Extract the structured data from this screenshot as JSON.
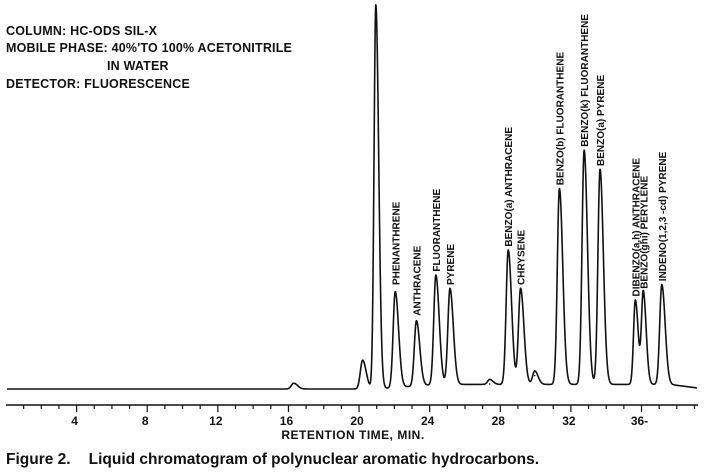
{
  "info": {
    "column": "COLUMN: HC-ODS SIL-X",
    "mobile_phase_1": "MOBILE PHASE: 40%'TO 100% ACETONITRILE",
    "mobile_phase_2": "IN WATER",
    "detector": "DETECTOR: FLUORESCENCE"
  },
  "caption": {
    "number": "Figure 2.",
    "text": "Liquid chromatogram of polynuclear aromatic hydrocarbons."
  },
  "chart_data": {
    "type": "line",
    "title": "",
    "xlabel": "RETENTION TIME, MIN.",
    "ylabel": "",
    "xlim": [
      0,
      39.2
    ],
    "ylim": [
      0,
      100
    ],
    "grid": false,
    "x_ticks": [
      {
        "value": 4,
        "label": "4"
      },
      {
        "value": 8,
        "label": "8"
      },
      {
        "value": 12,
        "label": "12"
      },
      {
        "value": 16,
        "label": "16"
      },
      {
        "value": 20,
        "label": "20"
      },
      {
        "value": 24,
        "label": "24"
      },
      {
        "value": 28,
        "label": "28"
      },
      {
        "value": 32,
        "label": "32"
      },
      {
        "value": 36,
        "label": "36-"
      }
    ],
    "baseline": 0,
    "peaks": [
      {
        "rt": 16.3,
        "height": 1.5,
        "width": 0.16,
        "label": ""
      },
      {
        "rt": 20.2,
        "height": 7.5,
        "width": 0.15,
        "label": ""
      },
      {
        "rt": 20.95,
        "height": 100,
        "width": 0.12,
        "label": ""
      },
      {
        "rt": 22.05,
        "height": 25.0,
        "width": 0.14,
        "label": "PHENANTHRENE"
      },
      {
        "rt": 23.25,
        "height": 17.0,
        "width": 0.14,
        "label": "ANTHRACENE"
      },
      {
        "rt": 24.35,
        "height": 28.5,
        "width": 0.14,
        "label": "FLUORANTHENE"
      },
      {
        "rt": 25.15,
        "height": 25.0,
        "width": 0.14,
        "label": "PYRENE"
      },
      {
        "rt": 27.4,
        "height": 1.3,
        "width": 0.14,
        "label": ""
      },
      {
        "rt": 28.45,
        "height": 35.0,
        "width": 0.14,
        "label": "BENZO(a) ANTHRACENE"
      },
      {
        "rt": 29.15,
        "height": 25.0,
        "width": 0.14,
        "label": "CHRYSENE"
      },
      {
        "rt": 29.95,
        "height": 3.5,
        "width": 0.14,
        "label": ""
      },
      {
        "rt": 31.35,
        "height": 51.0,
        "width": 0.14,
        "label": "BENZO(b) FLUORANTHENE"
      },
      {
        "rt": 32.75,
        "height": 61.0,
        "width": 0.14,
        "label": "BENZO(k) FLUORANTHENE"
      },
      {
        "rt": 33.65,
        "height": 56.0,
        "width": 0.14,
        "label": "BENZO(a) PYRENE"
      },
      {
        "rt": 35.65,
        "height": 22.0,
        "width": 0.12,
        "label": "DIBENZO(a,h) ANTHRACENE"
      },
      {
        "rt": 36.1,
        "height": 24.0,
        "width": 0.12,
        "label": "BENZO(ghi) PERYLENE"
      },
      {
        "rt": 37.15,
        "height": 26.0,
        "width": 0.14,
        "label": "INDENO(1,2,3 -cd) PYRENE"
      }
    ]
  }
}
